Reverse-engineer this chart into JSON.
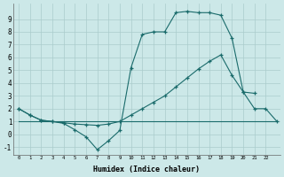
{
  "bg_color": "#cce8e8",
  "grid_color": "#aacccc",
  "line_color": "#1a6b6b",
  "xlabel": "Humidex (Indice chaleur)",
  "xlim": [
    -0.5,
    23.3
  ],
  "ylim": [
    -1.6,
    10.2
  ],
  "ytick_vals": [
    -1,
    0,
    1,
    2,
    3,
    4,
    5,
    6,
    7,
    8,
    9
  ],
  "line1_x": [
    0,
    1,
    2,
    3,
    4,
    5,
    6,
    7,
    8,
    9,
    10,
    11,
    12,
    13,
    14,
    15,
    16,
    17,
    18,
    19,
    20,
    21
  ],
  "line1_y": [
    2,
    1.5,
    1.1,
    1.0,
    0.85,
    0.35,
    -0.2,
    -1.2,
    -0.5,
    0.3,
    5.2,
    7.8,
    8.0,
    8.0,
    9.5,
    9.6,
    9.5,
    9.5,
    9.3,
    7.5,
    3.3,
    3.2
  ],
  "line2_x": [
    0,
    1,
    2,
    3,
    4,
    5,
    6,
    7,
    8,
    9,
    10,
    11,
    12,
    13,
    14,
    15,
    16,
    17,
    18,
    19,
    20,
    21,
    22,
    23
  ],
  "line2_y": [
    2,
    1.5,
    1.1,
    1.0,
    0.9,
    0.8,
    0.75,
    0.7,
    0.8,
    1.0,
    1.5,
    2.0,
    2.5,
    3.0,
    3.7,
    4.4,
    5.1,
    5.7,
    6.2,
    4.6,
    3.3,
    2.0,
    2.0,
    1.0
  ],
  "line3_x": [
    0,
    23
  ],
  "line3_y": [
    1,
    1
  ]
}
